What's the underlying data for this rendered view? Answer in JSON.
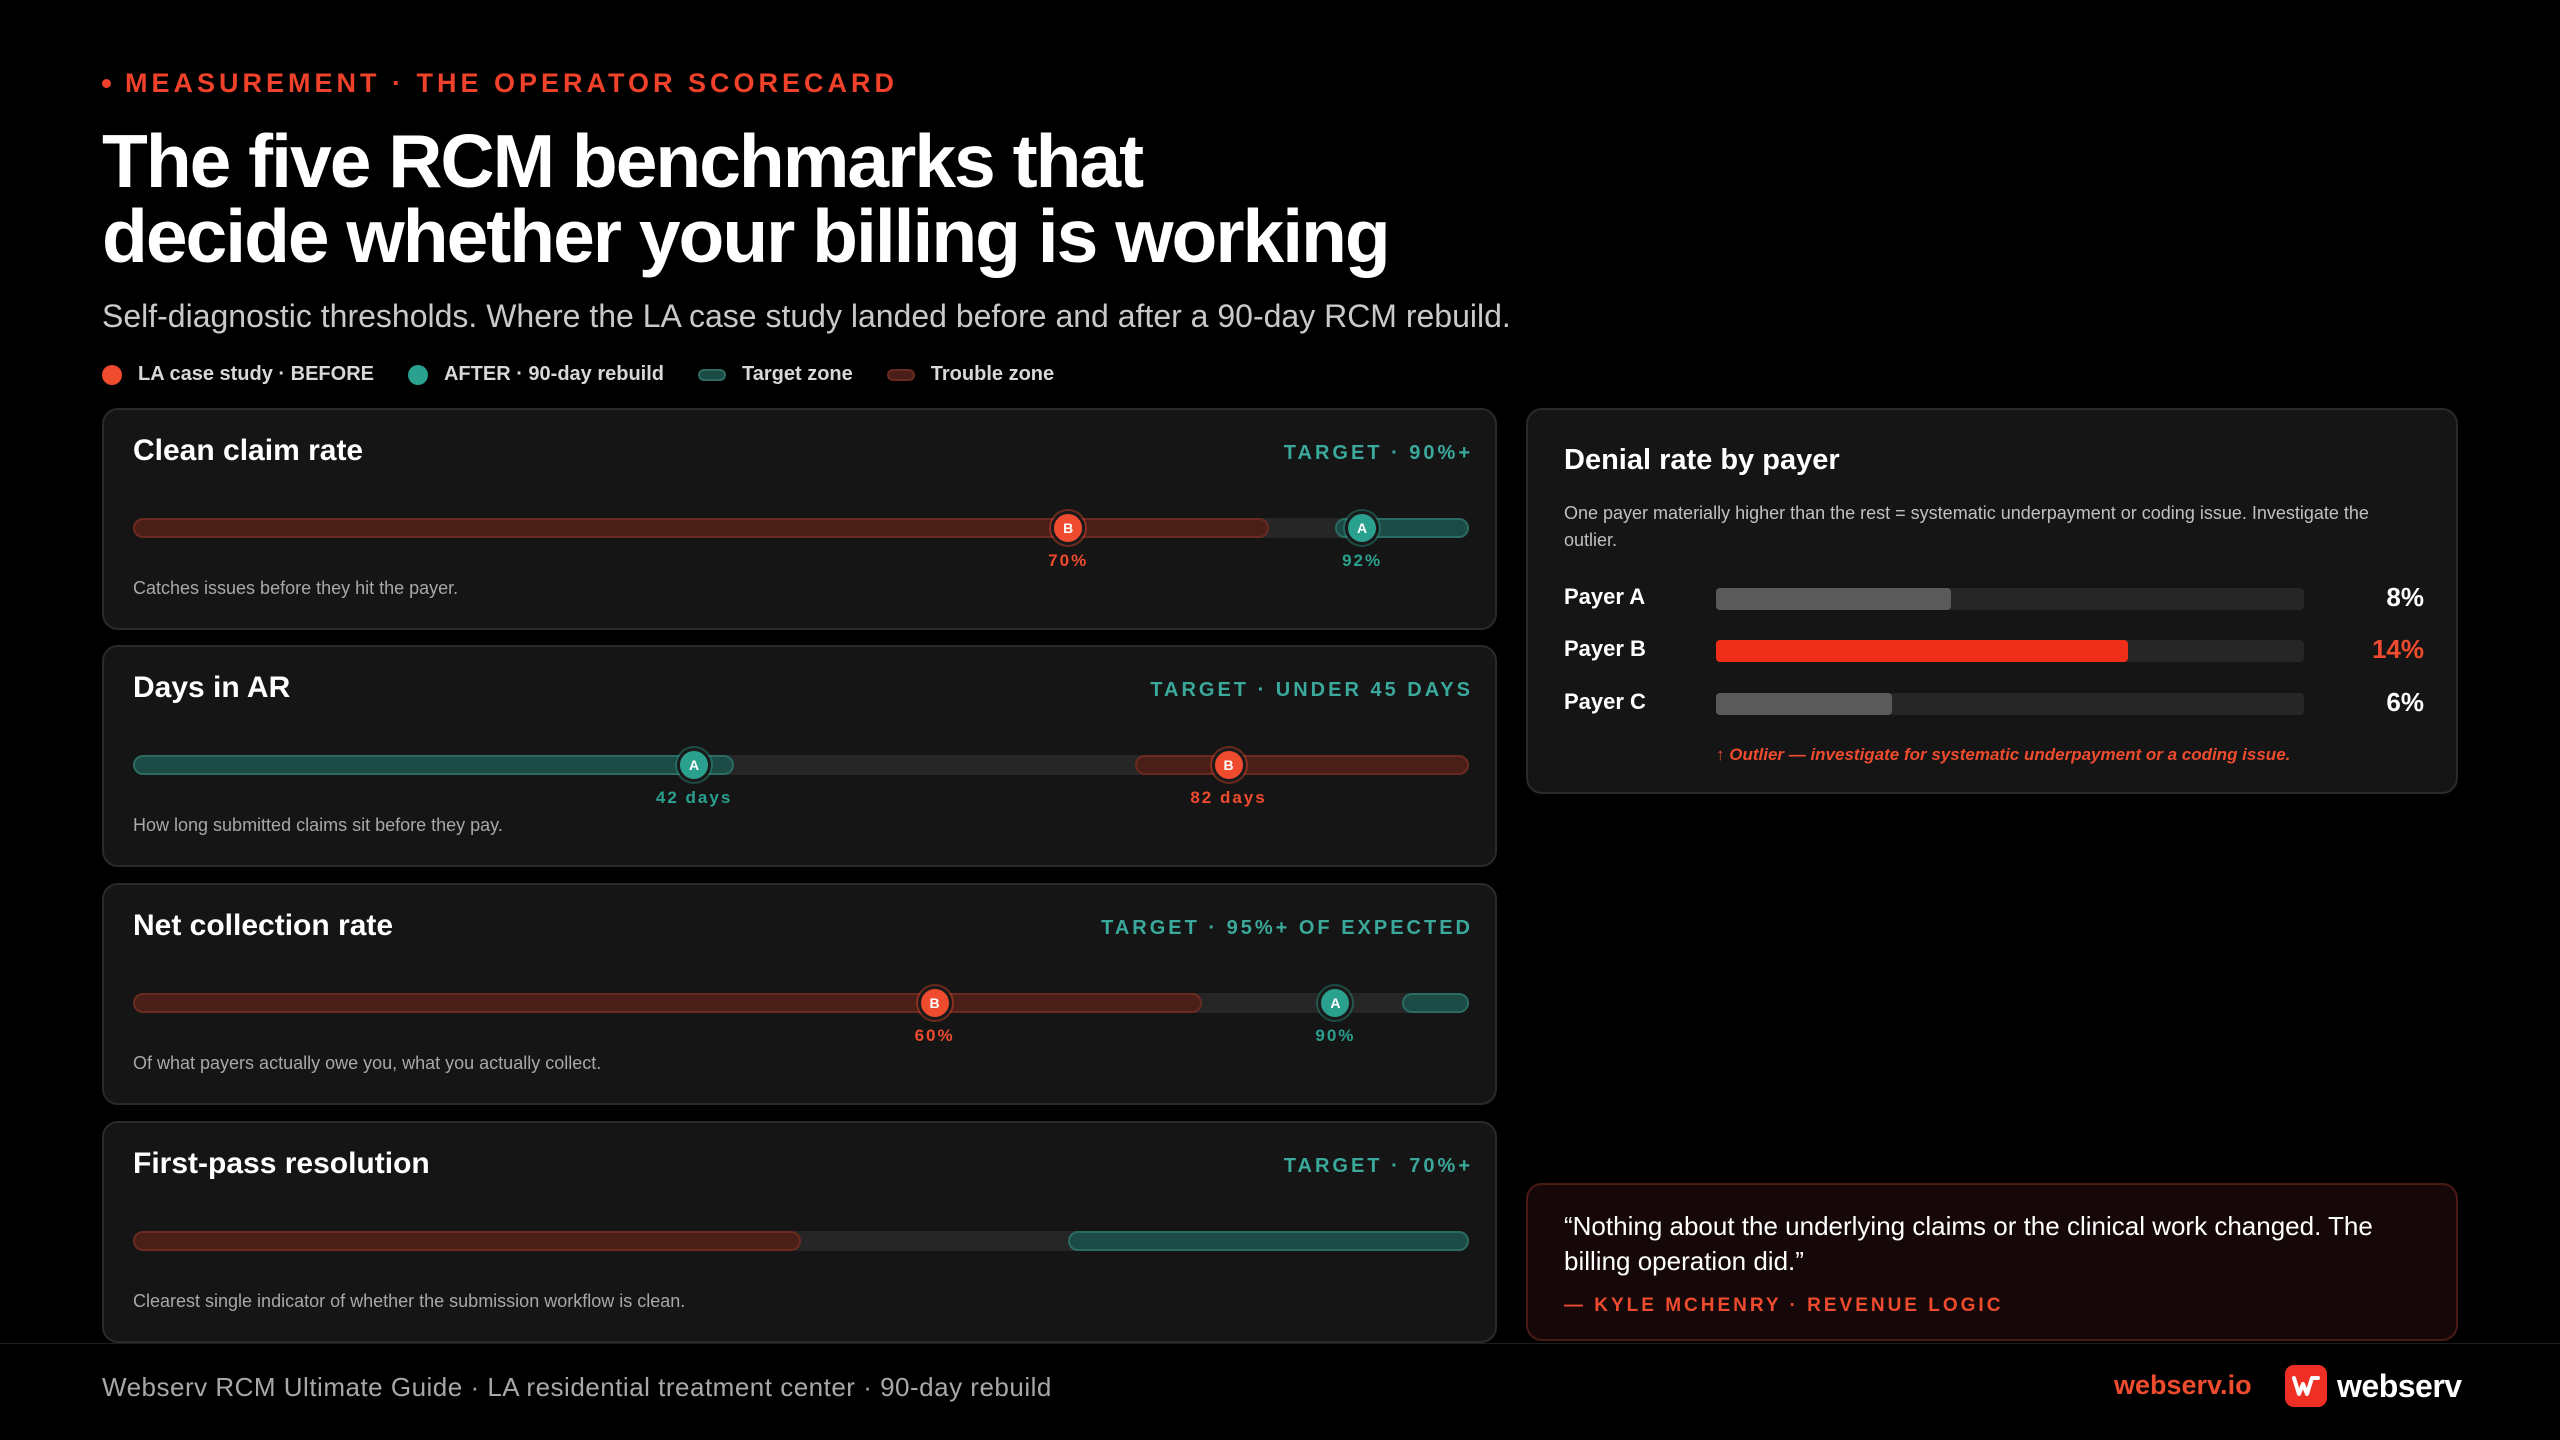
{
  "eyebrow": "MEASUREMENT · THE OPERATOR SCORECARD",
  "headline": {
    "line1": "The five RCM benchmarks that",
    "line2": "decide whether your billing is working"
  },
  "subline": "Self-diagnostic thresholds. Where the LA case study landed before and after a 90-day RCM rebuild.",
  "legend": [
    {
      "label": "LA case study · BEFORE",
      "color": "#ef4b2e"
    },
    {
      "label": "AFTER · 90-day rebuild",
      "color": "#2aa08f"
    },
    {
      "label": "Target zone",
      "color": "#2a6b62"
    },
    {
      "label": "Trouble zone",
      "color": "#6a2a20"
    }
  ],
  "benchmarks": [
    {
      "title": "Clean claim rate",
      "target": "TARGET · 90%+",
      "note": "Catches issues before they hit the payer.",
      "trouble": [
        0,
        0.85
      ],
      "target_zone": [
        0.9,
        1.0
      ],
      "before": {
        "position": 0.7,
        "label": "70%",
        "letter": "B"
      },
      "after": {
        "position": 0.92,
        "label": "92%",
        "letter": "A"
      }
    },
    {
      "title": "Days in AR",
      "target": "TARGET · UNDER 45 DAYS",
      "note": "How long submitted claims sit before they pay.",
      "trouble": [
        0.75,
        1.0
      ],
      "target_zone": [
        0,
        0.45
      ],
      "before": {
        "position": 0.82,
        "label": "82 days",
        "letter": "B"
      },
      "after": {
        "position": 0.42,
        "label": "42 days",
        "letter": "A"
      }
    },
    {
      "title": "Net collection rate",
      "target": "TARGET · 95%+ OF EXPECTED",
      "note": "Of what payers actually owe you, what you actually collect.",
      "trouble": [
        0,
        0.8
      ],
      "target_zone": [
        0.95,
        1.0
      ],
      "before": {
        "position": 0.6,
        "label": "60%",
        "letter": "B"
      },
      "after": {
        "position": 0.9,
        "label": "90%",
        "letter": "A"
      }
    },
    {
      "title": "First-pass resolution",
      "target": "TARGET · 70%+",
      "note": "Clearest single indicator of whether the submission workflow is clean.",
      "trouble": [
        0,
        0.5
      ],
      "target_zone": [
        0.7,
        1.0
      ],
      "before": null,
      "after": null
    }
  ],
  "denial_panel": {
    "title": "Denial rate by payer",
    "description": "One payer materially higher than the rest = systematic underpayment or coding issue. Investigate the outlier.",
    "payers": [
      {
        "name": "Payer A",
        "value_label": "8%",
        "value": 8,
        "color": "#5a5a5a",
        "highlight": false
      },
      {
        "name": "Payer B",
        "value_label": "14%",
        "value": 14,
        "color": "#ef2e1a",
        "highlight": true
      },
      {
        "name": "Payer C",
        "value_label": "6%",
        "value": 6,
        "color": "#5a5a5a",
        "highlight": false
      }
    ],
    "outlier_note": "↑ Outlier — investigate for systematic underpayment or a coding issue."
  },
  "quote": {
    "text": "“Nothing about the underlying claims or the clinical work changed. The billing operation did.”",
    "author": "— KYLE MCHENRY · REVENUE LOGIC"
  },
  "footer": {
    "left": "Webserv RCM Ultimate Guide · LA residential treatment center · 90-day rebuild",
    "url": "webserv.io",
    "brand": "webserv"
  }
}
